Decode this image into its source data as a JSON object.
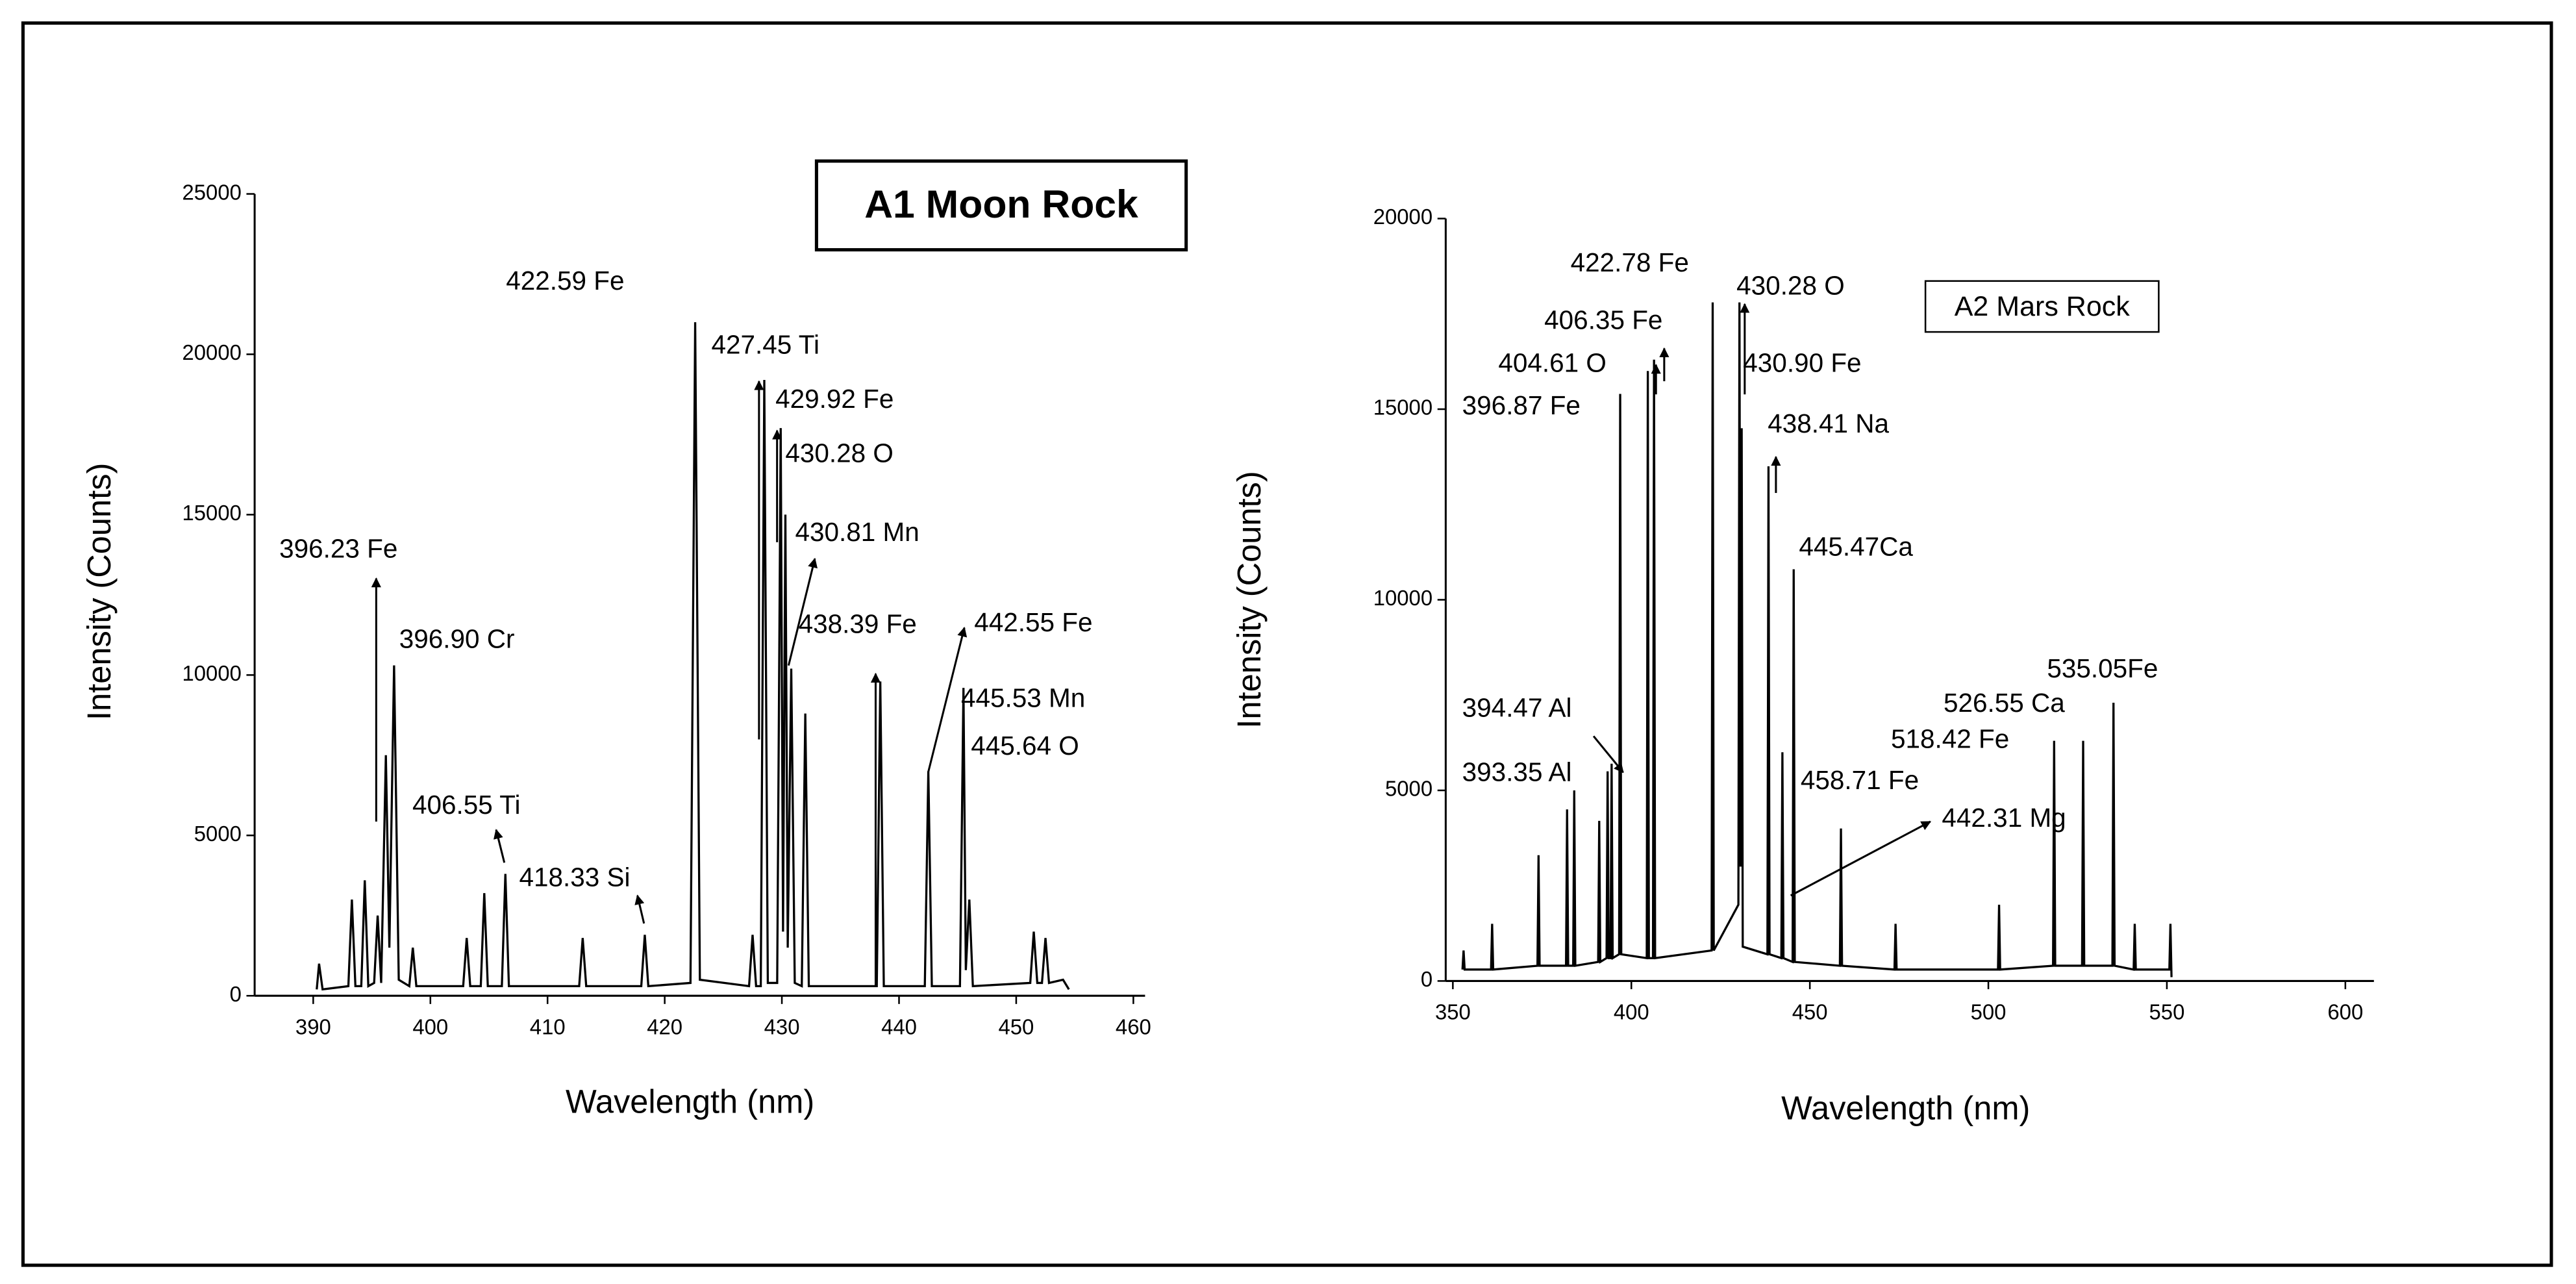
{
  "chart_data": [
    {
      "type": "line",
      "title": "A1 Moon Rock",
      "x_label": "Wavelength (nm)",
      "y_label": "Intensity (Counts)",
      "x": [
        390.3,
        390.5,
        390.8,
        393.0,
        393.3,
        393.6,
        394.1,
        394.4,
        394.7,
        395.2,
        395.5,
        395.8,
        396.2,
        396.5,
        396.9,
        397.3,
        398.2,
        398.5,
        398.8,
        402.8,
        403.1,
        403.4,
        404.3,
        404.6,
        404.9,
        406.1,
        406.4,
        406.7,
        412.7,
        413.0,
        413.3,
        418.0,
        418.3,
        418.6,
        422.2,
        422.6,
        423.0,
        427.2,
        427.5,
        427.8,
        428.2,
        428.5,
        428.8,
        429.6,
        429.9,
        430.1,
        430.3,
        430.5,
        430.8,
        431.1,
        431.7,
        432.0,
        432.3,
        438.1,
        438.4,
        438.7,
        442.2,
        442.5,
        442.8,
        445.2,
        445.5,
        445.7,
        446.0,
        446.3,
        451.2,
        451.5,
        451.8,
        452.2,
        452.5,
        452.8,
        454.0,
        454.5
      ],
      "values": [
        200,
        1000,
        200,
        300,
        3000,
        300,
        300,
        3600,
        300,
        400,
        2500,
        400,
        7500,
        1500,
        10300,
        500,
        300,
        1500,
        300,
        300,
        1800,
        300,
        300,
        3200,
        300,
        300,
        3800,
        300,
        300,
        1800,
        300,
        300,
        1900,
        300,
        400,
        21000,
        500,
        300,
        1900,
        300,
        300,
        19200,
        400,
        400,
        17700,
        2000,
        15000,
        1500,
        10200,
        400,
        300,
        8800,
        300,
        300,
        9800,
        300,
        300,
        7000,
        300,
        300,
        9600,
        800,
        3000,
        300,
        400,
        2000,
        400,
        400,
        1800,
        400,
        500,
        200
      ],
      "color": "#000000",
      "xlim": [
        385,
        461
      ],
      "xticks": [
        390,
        400,
        410,
        420,
        430,
        440,
        450,
        460
      ],
      "ylim": [
        0,
        25000
      ],
      "yticks": [
        0,
        5000,
        10000,
        15000,
        20000,
        25000
      ],
      "annotations": [
        {
          "text": "422.59 Fe"
        },
        {
          "text": "427.45 Ti"
        },
        {
          "text": "429.92 Fe"
        },
        {
          "text": "430.28 O"
        },
        {
          "text": "430.81 Mn"
        },
        {
          "text": "396.23 Fe"
        },
        {
          "text": "396.90 Cr"
        },
        {
          "text": "438.39 Fe"
        },
        {
          "text": "442.55 Fe"
        },
        {
          "text": "445.53 Mn"
        },
        {
          "text": "445.64 O"
        },
        {
          "text": "406.55 Ti"
        },
        {
          "text": "418.33 Si"
        }
      ]
    },
    {
      "type": "line",
      "title": "A2 Mars Rock",
      "x_label": "Wavelength (nm)",
      "y_label": "Intensity (Counts)",
      "x": [
        352.7,
        353,
        353.3,
        360.7,
        361,
        361.3,
        373.7,
        374,
        374.3,
        381.7,
        382,
        382.3,
        383.7,
        384,
        384.3,
        390.7,
        391,
        391.3,
        393.05,
        393.35,
        393.65,
        394.17,
        394.47,
        394.77,
        396.57,
        396.87,
        397.17,
        404.31,
        404.61,
        404.91,
        406.05,
        406.35,
        406.65,
        422.48,
        422.78,
        423.08,
        429.98,
        430.28,
        430.6,
        430.9,
        431.2,
        438.11,
        438.41,
        438.71,
        442.01,
        442.31,
        442.61,
        445.17,
        445.47,
        445.77,
        458.41,
        458.71,
        459.01,
        473.7,
        474,
        474.3,
        502.7,
        503,
        503.3,
        518.12,
        518.42,
        518.72,
        526.25,
        526.55,
        526.85,
        534.75,
        535.05,
        535.35,
        540.7,
        541,
        541.3,
        550.7,
        551,
        551.3
      ],
      "values": [
        300,
        800,
        300,
        300,
        1500,
        300,
        400,
        3300,
        400,
        400,
        4500,
        400,
        400,
        5000,
        400,
        500,
        4200,
        500,
        600,
        5500,
        600,
        600,
        5700,
        600,
        700,
        15400,
        700,
        600,
        16000,
        600,
        600,
        16300,
        600,
        800,
        17800,
        800,
        2000,
        17800,
        3000,
        14500,
        900,
        700,
        13500,
        700,
        600,
        6000,
        600,
        500,
        10800,
        500,
        400,
        4000,
        400,
        300,
        1500,
        300,
        300,
        2000,
        300,
        400,
        6300,
        400,
        400,
        6300,
        400,
        400,
        7300,
        400,
        300,
        1500,
        300,
        300,
        1500,
        100
      ],
      "color": "#000000",
      "xlim": [
        348,
        608
      ],
      "xticks": [
        350,
        400,
        450,
        500,
        550,
        600
      ],
      "ylim": [
        0,
        20000
      ],
      "yticks": [
        0,
        5000,
        10000,
        15000,
        20000
      ],
      "annotations": [
        {
          "text": "422.78 Fe"
        },
        {
          "text": "430.28 O"
        },
        {
          "text": "406.35 Fe"
        },
        {
          "text": "404.61 O"
        },
        {
          "text": "396.87 Fe"
        },
        {
          "text": "430.90 Fe"
        },
        {
          "text": "438.41 Na"
        },
        {
          "text": "445.47Ca"
        },
        {
          "text": "535.05Fe"
        },
        {
          "text": "526.55 Ca"
        },
        {
          "text": "394.47 Al"
        },
        {
          "text": "518.42 Fe"
        },
        {
          "text": "393.35 Al"
        },
        {
          "text": "458.71 Fe"
        },
        {
          "text": "442.31 Mg"
        }
      ]
    }
  ]
}
